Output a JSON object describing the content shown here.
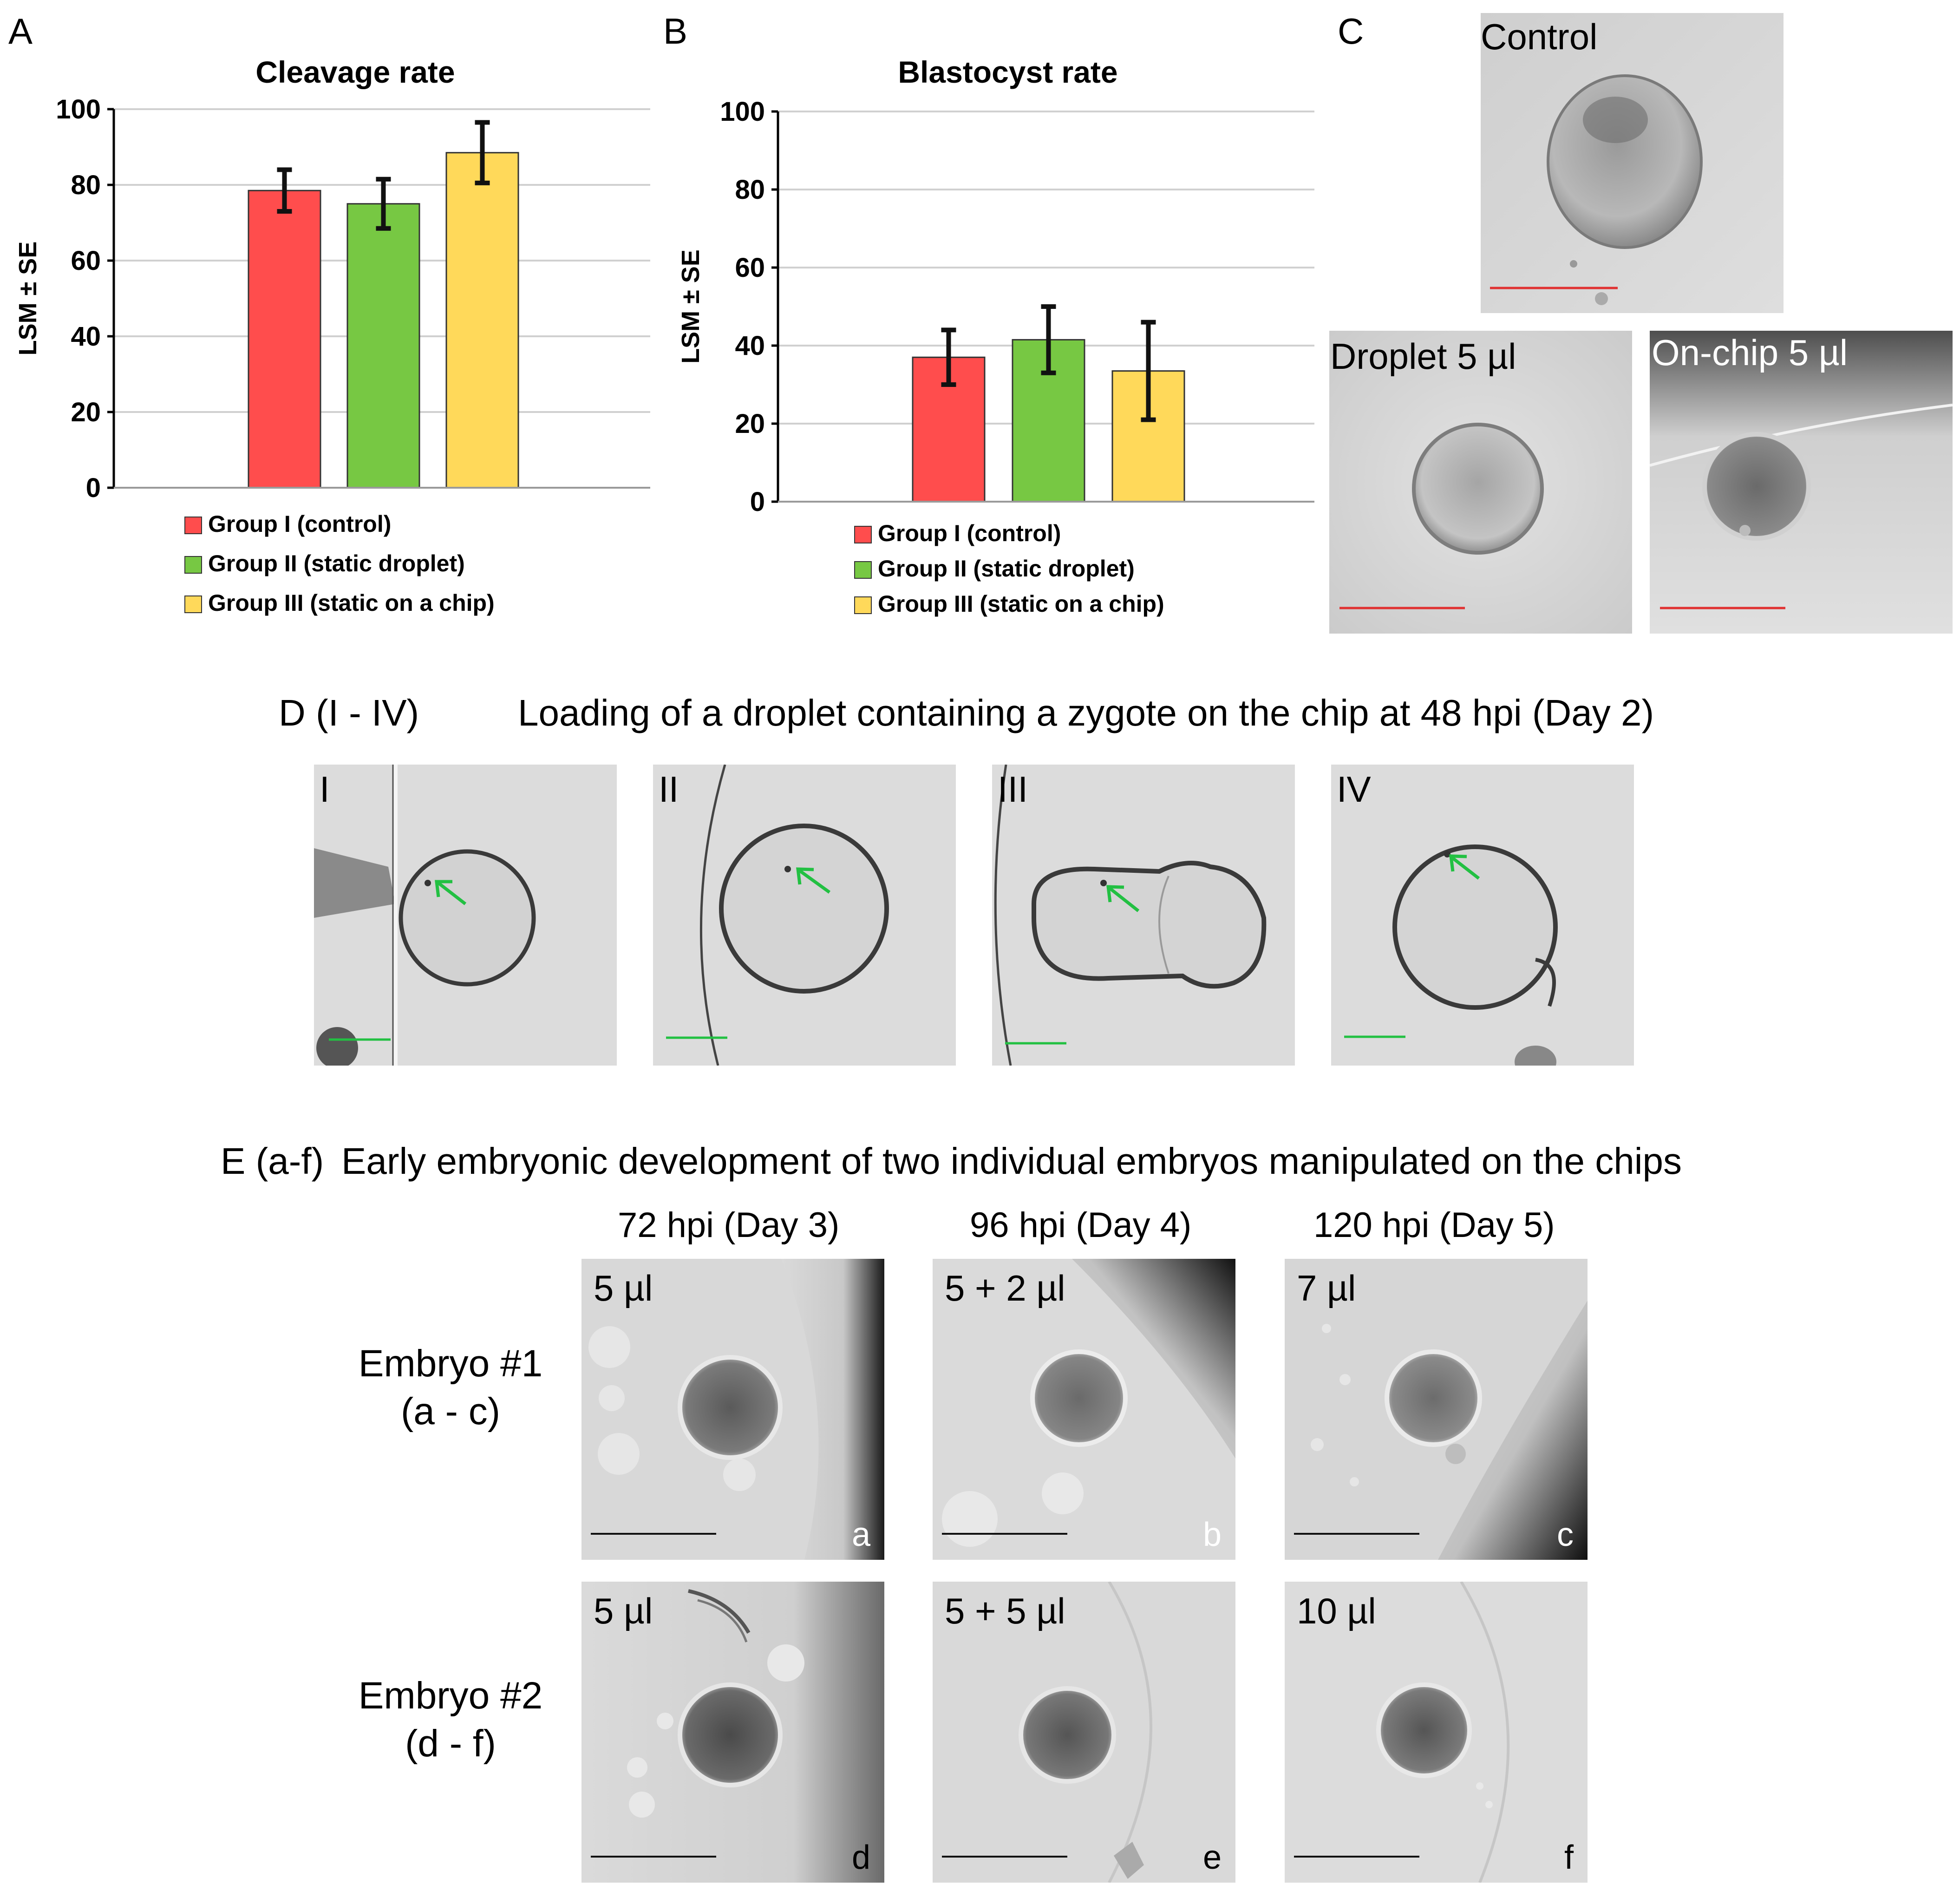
{
  "panel_labels": {
    "A": "A",
    "B": "B",
    "C": "C"
  },
  "chart_data": [
    {
      "type": "bar",
      "title": "Cleavage rate",
      "ylabel": "LSM ± SE",
      "ylim": [
        0,
        100
      ],
      "yticks": [
        0,
        20,
        40,
        60,
        80,
        100
      ],
      "grid": true,
      "categories": [
        "Group I (control)",
        "Group II (static droplet)",
        "Group III (static on a chip)"
      ],
      "values": [
        78.5,
        75,
        88.5
      ],
      "errors": [
        5.5,
        6.5,
        8
      ],
      "colors": [
        "#ff4d4d",
        "#77c843",
        "#ffd95a"
      ],
      "legend": "bottom"
    },
    {
      "type": "bar",
      "title": "Blastocyst rate",
      "ylabel": "LSM ± SE",
      "ylim": [
        0,
        100
      ],
      "yticks": [
        0,
        20,
        40,
        60,
        80,
        100
      ],
      "grid": true,
      "categories": [
        "Group I (control)",
        "Group II (static droplet)",
        "Group III (static on a chip)"
      ],
      "values": [
        37,
        41.5,
        33.5
      ],
      "errors": [
        7,
        8.5,
        12.5
      ],
      "colors": [
        "#ff4d4d",
        "#77c843",
        "#ffd95a"
      ],
      "legend": "bottom"
    }
  ],
  "panel_c": {
    "control": "Control",
    "droplet": "Droplet 5 µl",
    "onchip": "On-chip 5 µl"
  },
  "panel_d": {
    "label": "D (I - IV)",
    "caption": "Loading of a droplet containing a zygote on the chip at 48 hpi (Day 2)",
    "images": [
      "I",
      "II",
      "III",
      "IV"
    ]
  },
  "panel_e": {
    "label": "E (a-f)",
    "caption": "Early embryonic development of two individual embryos manipulated on the chips",
    "columns": [
      "72 hpi (Day 3)",
      "96 hpi (Day 4)",
      "120 hpi (Day 5)"
    ],
    "rows": [
      {
        "line1": "Embryo #1",
        "line2": "(a - c)",
        "volumes": [
          "5 µl",
          "5 + 2 µl",
          "7 µl"
        ],
        "letters": [
          "a",
          "b",
          "c"
        ]
      },
      {
        "line1": "Embryo #2",
        "line2": "(d - f)",
        "volumes": [
          "5 µl",
          "5 + 5 µl",
          "10 µl"
        ],
        "letters": [
          "d",
          "e",
          "f"
        ]
      }
    ]
  }
}
